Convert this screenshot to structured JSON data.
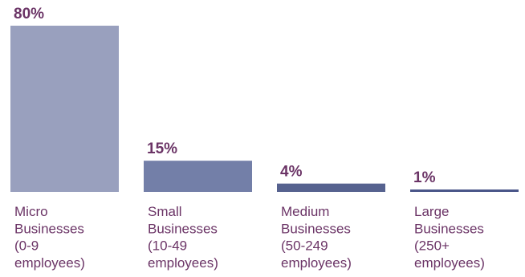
{
  "chart_data": {
    "type": "bar",
    "categories": [
      "Micro Businesses (0-9 employees)",
      "Small Businesses (10-49 employees)",
      "Medium Businesses (50-249 employees)",
      "Large Businesses (250+ employees)"
    ],
    "category_lines": [
      [
        "Micro",
        "Businesses",
        "(0-9",
        "employees)"
      ],
      [
        "Small",
        "Businesses",
        "(10-49",
        "employees)"
      ],
      [
        "Medium",
        "Businesses",
        "(50-249",
        "employees)"
      ],
      [
        "Large",
        "Businesses",
        "(250+",
        "employees)"
      ]
    ],
    "values": [
      80,
      15,
      4,
      1
    ],
    "value_labels": [
      "80%",
      "15%",
      "4%",
      "1%"
    ],
    "unit": "%",
    "ylim": [
      0,
      80
    ],
    "grid": false,
    "legend": "none",
    "colors": [
      "#99a0be",
      "#737fa8",
      "#56628f",
      "#4a5689"
    ],
    "label_color": "#6b3466"
  }
}
